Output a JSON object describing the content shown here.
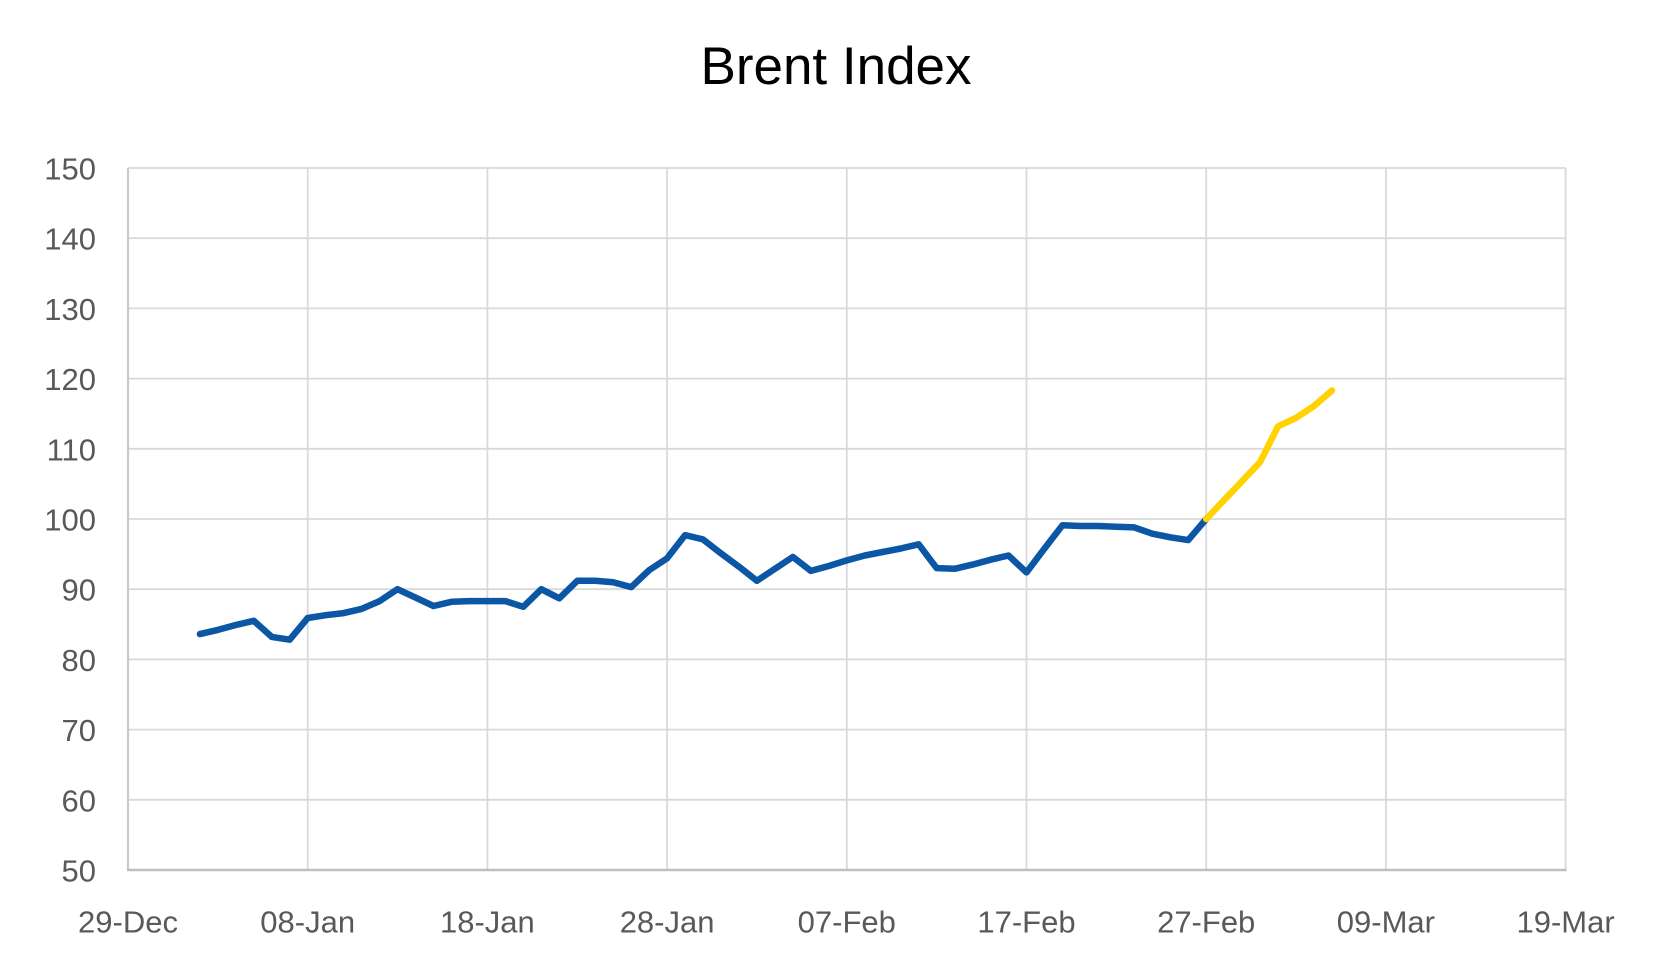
{
  "chart_data": {
    "type": "line",
    "title": "Brent Index",
    "xlabel": "",
    "ylabel": "",
    "ylim": [
      50,
      150
    ],
    "ytick_step": 10,
    "y_tick_labels": [
      "150",
      "140",
      "130",
      "120",
      "110",
      "100",
      "90",
      "80",
      "70",
      "60",
      "50"
    ],
    "x_tick_labels": [
      "29-Dec",
      "08-Jan",
      "18-Jan",
      "28-Jan",
      "07-Feb",
      "17-Feb",
      "27-Feb",
      "09-Mar",
      "19-Mar"
    ],
    "grid": true,
    "legend_position": "none",
    "style": {
      "series_blue": "#0B57A6",
      "series_yellow": "#FFD200",
      "gridline_color": "#D9D9D9",
      "axis_line_color": "#BFBFBF",
      "plot_border_color": "#C9C9C9",
      "text_color": "#595959",
      "background": "#FFFFFF"
    },
    "series": [
      {
        "id": "main",
        "color_key": "series_blue",
        "points": [
          {
            "date": "02-Jan",
            "value": 83.6
          },
          {
            "date": "03-Jan",
            "value": 84.2
          },
          {
            "date": "04-Jan",
            "value": 84.9
          },
          {
            "date": "05-Jan",
            "value": 85.5
          },
          {
            "date": "06-Jan",
            "value": 83.2
          },
          {
            "date": "07-Jan",
            "value": 82.8
          },
          {
            "date": "08-Jan",
            "value": 85.9
          },
          {
            "date": "09-Jan",
            "value": 86.3
          },
          {
            "date": "10-Jan",
            "value": 86.6
          },
          {
            "date": "11-Jan",
            "value": 87.2
          },
          {
            "date": "12-Jan",
            "value": 88.3
          },
          {
            "date": "13-Jan",
            "value": 90.0
          },
          {
            "date": "14-Jan",
            "value": 88.8
          },
          {
            "date": "15-Jan",
            "value": 87.6
          },
          {
            "date": "16-Jan",
            "value": 88.2
          },
          {
            "date": "17-Jan",
            "value": 88.3
          },
          {
            "date": "18-Jan",
            "value": 88.3
          },
          {
            "date": "19-Jan",
            "value": 88.3
          },
          {
            "date": "20-Jan",
            "value": 87.5
          },
          {
            "date": "21-Jan",
            "value": 90.0
          },
          {
            "date": "22-Jan",
            "value": 88.7
          },
          {
            "date": "23-Jan",
            "value": 91.2
          },
          {
            "date": "24-Jan",
            "value": 91.2
          },
          {
            "date": "25-Jan",
            "value": 91.0
          },
          {
            "date": "26-Jan",
            "value": 90.3
          },
          {
            "date": "27-Jan",
            "value": 92.7
          },
          {
            "date": "28-Jan",
            "value": 94.4
          },
          {
            "date": "29-Jan",
            "value": 97.7
          },
          {
            "date": "30-Jan",
            "value": 97.1
          },
          {
            "date": "31-Jan",
            "value": 95.1
          },
          {
            "date": "01-Feb",
            "value": 93.2
          },
          {
            "date": "02-Feb",
            "value": 91.2
          },
          {
            "date": "03-Feb",
            "value": 92.9
          },
          {
            "date": "04-Feb",
            "value": 94.6
          },
          {
            "date": "05-Feb",
            "value": 92.6
          },
          {
            "date": "06-Feb",
            "value": 93.3
          },
          {
            "date": "07-Feb",
            "value": 94.1
          },
          {
            "date": "08-Feb",
            "value": 94.8
          },
          {
            "date": "09-Feb",
            "value": 95.3
          },
          {
            "date": "10-Feb",
            "value": 95.8
          },
          {
            "date": "11-Feb",
            "value": 96.4
          },
          {
            "date": "12-Feb",
            "value": 93.0
          },
          {
            "date": "13-Feb",
            "value": 92.9
          },
          {
            "date": "14-Feb",
            "value": 93.5
          },
          {
            "date": "15-Feb",
            "value": 94.2
          },
          {
            "date": "16-Feb",
            "value": 94.8
          },
          {
            "date": "17-Feb",
            "value": 92.4
          },
          {
            "date": "18-Feb",
            "value": 95.8
          },
          {
            "date": "19-Feb",
            "value": 99.1
          },
          {
            "date": "20-Feb",
            "value": 99.0
          },
          {
            "date": "21-Feb",
            "value": 99.0
          },
          {
            "date": "22-Feb",
            "value": 98.9
          },
          {
            "date": "23-Feb",
            "value": 98.8
          },
          {
            "date": "24-Feb",
            "value": 97.9
          },
          {
            "date": "25-Feb",
            "value": 97.4
          },
          {
            "date": "26-Feb",
            "value": 97.0
          },
          {
            "date": "27-Feb",
            "value": 100.0
          }
        ]
      },
      {
        "id": "highlight",
        "color_key": "series_yellow",
        "points": [
          {
            "date": "27-Feb",
            "value": 100.0
          },
          {
            "date": "28-Feb",
            "value": 102.7
          },
          {
            "date": "01-Mar",
            "value": 105.4
          },
          {
            "date": "02-Mar",
            "value": 108.1
          },
          {
            "date": "03-Mar",
            "value": 113.2
          },
          {
            "date": "04-Mar",
            "value": 114.4
          },
          {
            "date": "05-Mar",
            "value": 116.1
          },
          {
            "date": "06-Mar",
            "value": 118.3
          }
        ]
      }
    ]
  }
}
